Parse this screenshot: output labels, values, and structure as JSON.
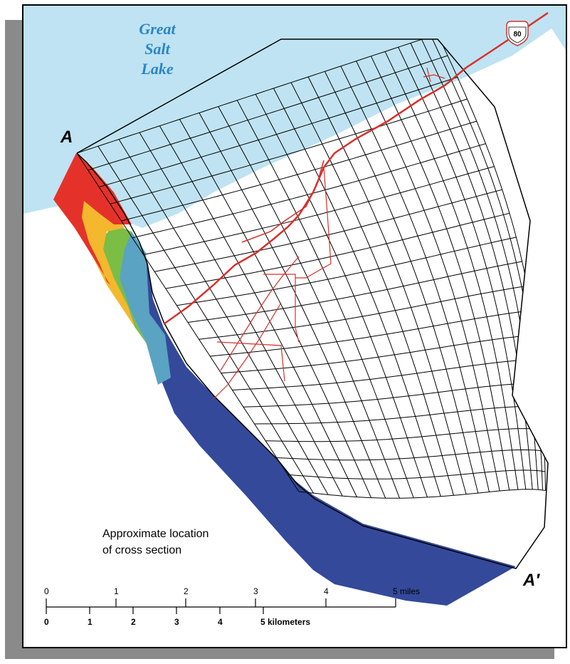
{
  "map": {
    "lake_label_lines": [
      "Great",
      "Salt",
      "Lake"
    ],
    "section_start_label": "A",
    "section_end_label": "A′",
    "highway_number": "80",
    "caption_lines": [
      "Approximate location",
      "of cross section"
    ],
    "colors": {
      "lake": "#bfe3f2",
      "lake_label": "#2a85c4",
      "roads": "#d8302b",
      "deep_blue": "#34499a",
      "light_blue": "#5aa3c2",
      "green": "#7bbd45",
      "yellow": "#f3b82e",
      "red": "#e4322a",
      "grid": "#000000"
    }
  },
  "scale_bar": {
    "miles": {
      "ticks": [
        "0",
        "1",
        "2",
        "3",
        "4"
      ],
      "end_label": "5 miles"
    },
    "kilometers": {
      "ticks": [
        "0",
        "1",
        "2",
        "3",
        "4"
      ],
      "end_label": "5 kilometers"
    }
  }
}
